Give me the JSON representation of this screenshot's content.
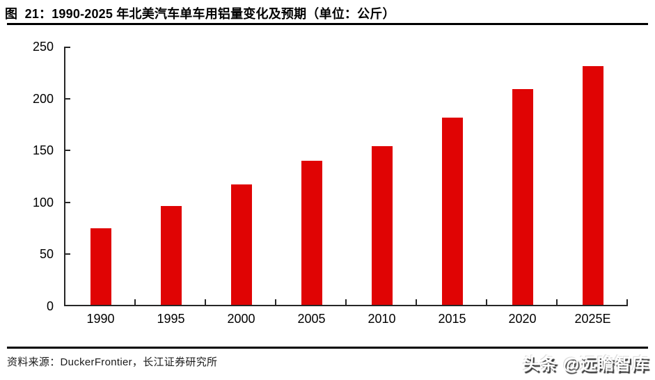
{
  "header": {
    "figure_title": "图  21：1990-2025 年北美汽车单车用铝量变化及预期（单位：公斤）"
  },
  "chart_data": {
    "type": "bar",
    "title": "1990-2025 年北美汽车单车用铝量变化及预期",
    "unit": "公斤",
    "categories": [
      "1990",
      "1995",
      "2000",
      "2005",
      "2010",
      "2015",
      "2020",
      "2025E"
    ],
    "values": [
      74,
      95,
      116,
      139,
      153,
      180,
      208,
      230
    ],
    "ylim": [
      0,
      250
    ],
    "yticks": [
      0,
      50,
      100,
      150,
      200,
      250
    ],
    "xlabel": "",
    "ylabel": "",
    "grid": false,
    "legend_position": "none",
    "bar_color": "#e00404",
    "axis_color": "#262626"
  },
  "footer": {
    "source": "资料来源：DuckerFrontier，长江证券研究所",
    "watermark": "头条 @远瞻智库"
  }
}
